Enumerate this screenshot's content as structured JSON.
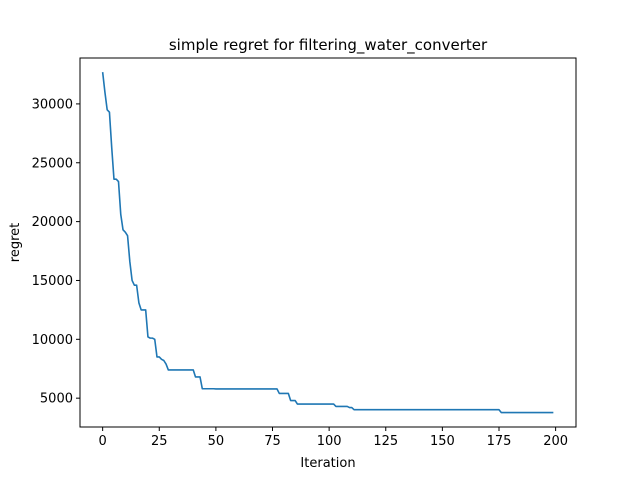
{
  "chart_data": {
    "type": "line",
    "title": "simple regret for filtering_water_converter",
    "xlabel": "Iteration",
    "ylabel": "regret",
    "xlim": [
      -10,
      209
    ],
    "ylim": [
      2550,
      33900
    ],
    "grid": false,
    "x_ticks": [
      0,
      25,
      50,
      75,
      100,
      125,
      150,
      175,
      200
    ],
    "y_ticks": [
      5000,
      10000,
      15000,
      20000,
      25000,
      30000
    ],
    "colors": {
      "line": "#1f77b4",
      "axes": "#000000",
      "background": "#ffffff"
    },
    "series": [
      {
        "x": [
          0,
          1,
          2,
          3,
          4,
          5,
          6,
          7,
          8,
          9,
          10,
          11,
          12,
          13,
          14,
          15,
          16,
          17,
          18,
          19,
          20,
          21,
          22,
          23,
          24,
          25,
          26,
          27,
          28,
          29,
          30,
          31,
          40,
          41,
          43,
          44,
          49,
          50,
          77,
          78,
          82,
          83,
          85,
          86,
          102,
          103,
          108,
          109,
          110,
          111,
          175,
          176,
          199
        ],
        "values": [
          32700,
          31000,
          29500,
          29300,
          26300,
          23600,
          23600,
          23400,
          20600,
          19300,
          19100,
          18800,
          16600,
          15000,
          14600,
          14600,
          13100,
          12500,
          12500,
          12500,
          10200,
          10100,
          10100,
          10000,
          8500,
          8500,
          8300,
          8200,
          7900,
          7400,
          7400,
          7400,
          7400,
          6800,
          6800,
          5800,
          5800,
          5780,
          5780,
          5400,
          5400,
          4800,
          4800,
          4500,
          4500,
          4300,
          4300,
          4200,
          4200,
          4020,
          4020,
          3780,
          3780
        ]
      }
    ]
  }
}
